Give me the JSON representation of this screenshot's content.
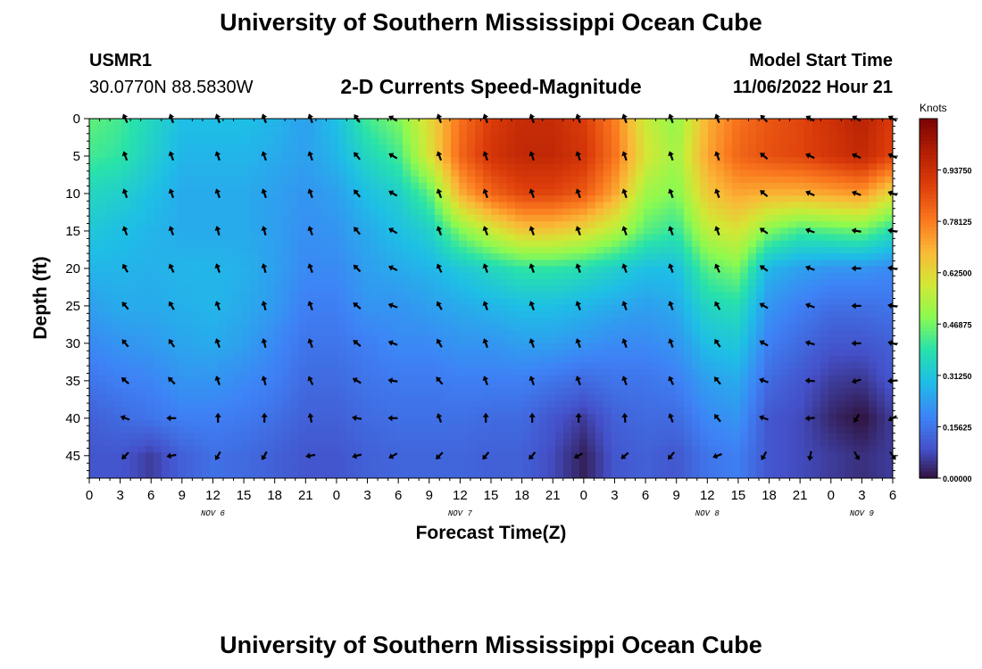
{
  "header": {
    "title": "University of Southern Mississippi Ocean Cube",
    "station_id": "USMR1",
    "station_coords": "30.0770N  88.5830W",
    "chart_title": "2-D Currents Speed-Magnitude",
    "model_start_label": "Model Start Time",
    "model_start_value": "11/06/2022 Hour 21"
  },
  "footer": {
    "title": "University of Southern Mississippi Ocean Cube"
  },
  "chart_data": {
    "type": "heatmap",
    "title": "2-D Currents Speed-Magnitude",
    "xlabel": "Forecast Time(Z)",
    "ylabel": "Depth (ft)",
    "x_unit": "hours since 11/06/2022 00Z",
    "xlim": [
      0,
      78
    ],
    "ylim": [
      0,
      48
    ],
    "x_ticks": [
      0,
      3,
      6,
      9,
      12,
      15,
      18,
      21,
      24,
      27,
      30,
      33,
      36,
      39,
      42,
      45,
      48,
      51,
      54,
      57,
      60,
      63,
      66,
      69,
      72,
      75,
      78
    ],
    "x_tick_labels": [
      "0",
      "3",
      "6",
      "9",
      "12",
      "15",
      "18",
      "21",
      "0",
      "3",
      "6",
      "9",
      "12",
      "15",
      "18",
      "21",
      "0",
      "3",
      "6",
      "9",
      "12",
      "15",
      "18",
      "21",
      "0",
      "3",
      "6"
    ],
    "date_labels": [
      {
        "x": 12,
        "label": "NOV 6"
      },
      {
        "x": 36,
        "label": "NOV 7"
      },
      {
        "x": 60,
        "label": "NOV 8"
      },
      {
        "x": 75,
        "label": "NOV 9"
      }
    ],
    "y_ticks": [
      0,
      5,
      10,
      15,
      20,
      25,
      30,
      35,
      40,
      45
    ],
    "colorbar": {
      "label": "Knots",
      "min": 0,
      "max": 1.09375,
      "ticks": [
        0.0,
        0.15625,
        0.3125,
        0.46875,
        0.625,
        0.78125,
        0.9375
      ],
      "tick_labels": [
        "0.00000",
        "0.15625",
        "0.31250",
        "0.46875",
        "0.62500",
        "0.78125",
        "0.93750"
      ]
    },
    "depths": [
      0,
      5,
      10,
      15,
      20,
      25,
      30,
      35,
      40,
      45
    ],
    "times": [
      0,
      3,
      6,
      9,
      12,
      15,
      18,
      21,
      24,
      27,
      30,
      33,
      36,
      39,
      42,
      45,
      48,
      51,
      54,
      57,
      60,
      63,
      66,
      69,
      72,
      75,
      78
    ],
    "speed": [
      [
        0.45,
        0.42,
        0.36,
        0.3,
        0.3,
        0.3,
        0.28,
        0.24,
        0.3,
        0.42,
        0.48,
        0.62,
        0.8,
        0.9,
        0.95,
        0.95,
        0.9,
        0.78,
        0.58,
        0.5,
        0.7,
        0.8,
        0.85,
        0.88,
        0.93,
        0.98,
        0.9
      ],
      [
        0.42,
        0.4,
        0.34,
        0.28,
        0.28,
        0.28,
        0.26,
        0.24,
        0.28,
        0.36,
        0.42,
        0.6,
        0.82,
        0.92,
        0.96,
        0.96,
        0.92,
        0.8,
        0.6,
        0.52,
        0.72,
        0.82,
        0.86,
        0.88,
        0.92,
        0.96,
        0.88
      ],
      [
        0.36,
        0.34,
        0.3,
        0.26,
        0.26,
        0.26,
        0.24,
        0.22,
        0.24,
        0.3,
        0.34,
        0.44,
        0.7,
        0.82,
        0.88,
        0.88,
        0.84,
        0.72,
        0.52,
        0.48,
        0.66,
        0.72,
        0.7,
        0.7,
        0.72,
        0.74,
        0.62
      ],
      [
        0.32,
        0.3,
        0.28,
        0.26,
        0.26,
        0.26,
        0.24,
        0.21,
        0.22,
        0.26,
        0.3,
        0.34,
        0.48,
        0.58,
        0.66,
        0.66,
        0.62,
        0.55,
        0.44,
        0.4,
        0.56,
        0.6,
        0.48,
        0.42,
        0.44,
        0.46,
        0.38
      ],
      [
        0.28,
        0.28,
        0.27,
        0.28,
        0.28,
        0.27,
        0.24,
        0.2,
        0.2,
        0.24,
        0.26,
        0.28,
        0.32,
        0.36,
        0.4,
        0.4,
        0.38,
        0.34,
        0.3,
        0.3,
        0.44,
        0.48,
        0.28,
        0.24,
        0.22,
        0.22,
        0.2
      ],
      [
        0.24,
        0.26,
        0.26,
        0.27,
        0.28,
        0.26,
        0.23,
        0.18,
        0.18,
        0.22,
        0.22,
        0.24,
        0.26,
        0.28,
        0.3,
        0.3,
        0.28,
        0.26,
        0.24,
        0.26,
        0.36,
        0.38,
        0.22,
        0.18,
        0.15,
        0.15,
        0.16
      ],
      [
        0.2,
        0.22,
        0.23,
        0.25,
        0.26,
        0.24,
        0.2,
        0.16,
        0.16,
        0.18,
        0.2,
        0.2,
        0.22,
        0.22,
        0.24,
        0.24,
        0.22,
        0.2,
        0.2,
        0.22,
        0.3,
        0.32,
        0.18,
        0.14,
        0.1,
        0.1,
        0.12
      ],
      [
        0.16,
        0.18,
        0.19,
        0.22,
        0.22,
        0.2,
        0.18,
        0.14,
        0.14,
        0.16,
        0.17,
        0.17,
        0.18,
        0.18,
        0.18,
        0.16,
        0.14,
        0.16,
        0.16,
        0.18,
        0.24,
        0.26,
        0.14,
        0.1,
        0.06,
        0.05,
        0.1
      ],
      [
        0.12,
        0.14,
        0.16,
        0.18,
        0.18,
        0.17,
        0.15,
        0.12,
        0.12,
        0.14,
        0.15,
        0.15,
        0.15,
        0.14,
        0.14,
        0.1,
        0.06,
        0.12,
        0.14,
        0.14,
        0.2,
        0.22,
        0.1,
        0.08,
        0.03,
        0.0,
        0.06
      ],
      [
        0.1,
        0.1,
        0.06,
        0.12,
        0.15,
        0.14,
        0.12,
        0.1,
        0.1,
        0.12,
        0.13,
        0.13,
        0.13,
        0.12,
        0.12,
        0.08,
        0.02,
        0.1,
        0.12,
        0.1,
        0.16,
        0.18,
        0.1,
        0.08,
        0.06,
        0.04,
        0.06
      ]
    ],
    "arrow_times": [
      3.5,
      8,
      12.5,
      17,
      21.5,
      26,
      29.5,
      34,
      38.5,
      43,
      47.5,
      52,
      56.5,
      61,
      65.5,
      70,
      74.5,
      78
    ],
    "arrow_depths": [
      0,
      5,
      10,
      15,
      20,
      25,
      30,
      35,
      40,
      45
    ],
    "direction_deg": [
      [
        245,
        250,
        250,
        250,
        250,
        235,
        210,
        250,
        250,
        250,
        250,
        250,
        250,
        250,
        225,
        210,
        210,
        210,
        205,
        230,
        250,
        250,
        245,
        240,
        240,
        235,
        230
      ],
      [
        250,
        250,
        250,
        250,
        250,
        230,
        210,
        250,
        250,
        250,
        250,
        250,
        250,
        250,
        220,
        205,
        205,
        205,
        205,
        225,
        245,
        245,
        240,
        235,
        230,
        225,
        225
      ],
      [
        250,
        250,
        250,
        250,
        250,
        230,
        210,
        250,
        250,
        250,
        250,
        250,
        250,
        250,
        220,
        205,
        200,
        200,
        200,
        220,
        240,
        240,
        230,
        225,
        220,
        220,
        220
      ],
      [
        250,
        250,
        255,
        255,
        250,
        230,
        210,
        250,
        250,
        250,
        250,
        250,
        250,
        250,
        215,
        200,
        190,
        190,
        195,
        210,
        230,
        230,
        220,
        215,
        210,
        205,
        210
      ],
      [
        240,
        245,
        250,
        255,
        250,
        225,
        205,
        245,
        250,
        250,
        250,
        250,
        250,
        245,
        215,
        200,
        180,
        190,
        195,
        200,
        210,
        200,
        195,
        195,
        195,
        200,
        205
      ],
      [
        230,
        240,
        250,
        255,
        250,
        220,
        200,
        240,
        250,
        250,
        250,
        250,
        250,
        240,
        210,
        200,
        180,
        190,
        195,
        195,
        200,
        190,
        185,
        185,
        190,
        195,
        200
      ],
      [
        230,
        235,
        250,
        255,
        250,
        220,
        200,
        240,
        250,
        250,
        250,
        250,
        250,
        235,
        210,
        195,
        180,
        195,
        200,
        195,
        195,
        180,
        185,
        190,
        190,
        195,
        200
      ],
      [
        220,
        225,
        250,
        255,
        245,
        210,
        190,
        230,
        250,
        250,
        250,
        250,
        245,
        230,
        200,
        185,
        165,
        175,
        190,
        190,
        200,
        150,
        160,
        170,
        190,
        200,
        210
      ],
      [
        200,
        180,
        270,
        270,
        260,
        190,
        180,
        250,
        270,
        270,
        270,
        265,
        250,
        230,
        200,
        175,
        120,
        150,
        180,
        180,
        180,
        135,
        90,
        70,
        70,
        90,
        120
      ],
      [
        135,
        170,
        120,
        120,
        170,
        165,
        150,
        135,
        130,
        130,
        150,
        140,
        130,
        160,
        120,
        100,
        60,
        55,
        45,
        80,
        110,
        135,
        140,
        120,
        140,
        150,
        160
      ]
    ]
  }
}
